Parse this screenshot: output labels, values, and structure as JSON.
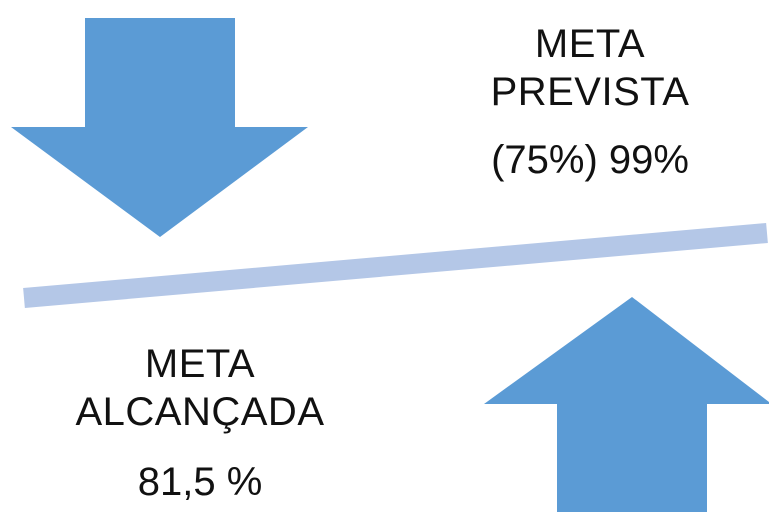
{
  "target": {
    "line1": "META",
    "line2": "PREVISTA",
    "value": "(75%) 99%"
  },
  "achieved": {
    "line1": "META",
    "line2": "ALCANÇADA",
    "value": "81,5 %"
  },
  "icons": {
    "down": "arrow-down-icon",
    "up": "arrow-up-icon"
  },
  "colors": {
    "arrow": "#5B9BD5",
    "divider": "#B4C7E7",
    "text": "#111111",
    "background": "#FFFFFF"
  }
}
